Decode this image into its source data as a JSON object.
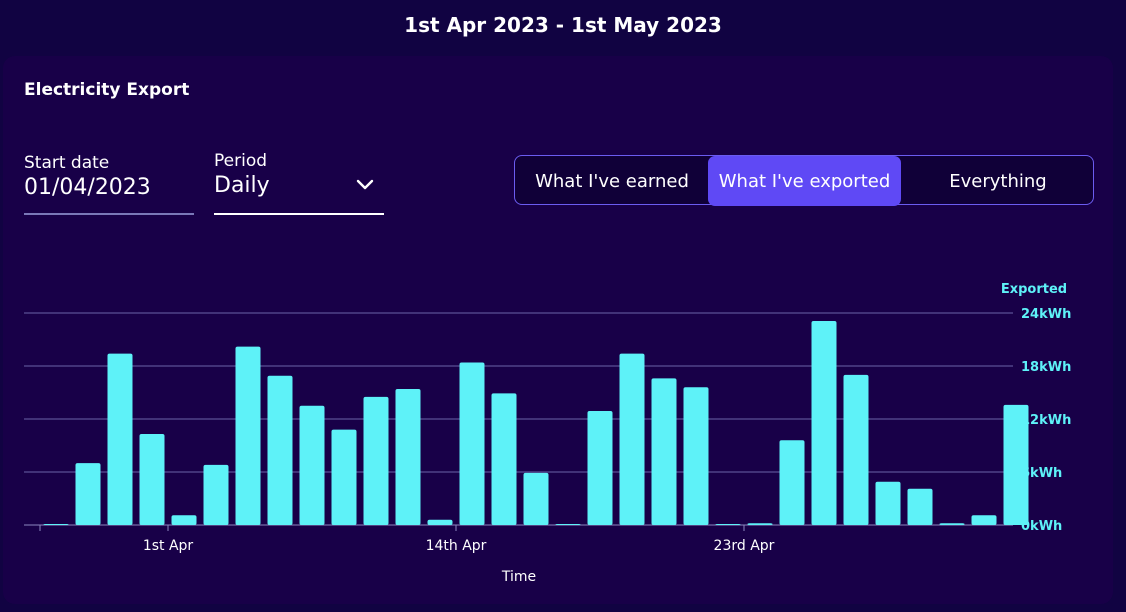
{
  "header": {
    "date_range": "1st Apr 2023 - 1st May 2023"
  },
  "card": {
    "title": "Electricity Export",
    "start_date": {
      "label": "Start date",
      "value": "01/04/2023"
    },
    "period": {
      "label": "Period",
      "value": "Daily"
    },
    "toggles": [
      {
        "label": "What I've earned",
        "active": false
      },
      {
        "label": "What I've exported",
        "active": true
      },
      {
        "label": "Everything",
        "active": false
      }
    ]
  },
  "colors": {
    "bar": "#5ef2f8",
    "accent": "#5f49f5",
    "axis_text": "#5ef2f8",
    "grid": "#6a64a8"
  },
  "chart_data": {
    "type": "bar",
    "xlabel": "Time",
    "ylabel": "Exported",
    "ylim": [
      0,
      24
    ],
    "y_ticks": [
      "0kWh",
      "6kWh",
      "12kWh",
      "18kWh",
      "24kWh"
    ],
    "y_tick_values": [
      0,
      6,
      12,
      18,
      24
    ],
    "x_tick_labels": [
      {
        "label": "1st Apr",
        "index": 3.5
      },
      {
        "label": "14th Apr",
        "index": 12.5
      },
      {
        "label": "23rd Apr",
        "index": 21.5
      }
    ],
    "grid": true,
    "legend": "none",
    "values": [
      0.1,
      7.0,
      19.4,
      10.3,
      1.1,
      6.8,
      20.2,
      16.9,
      13.5,
      10.8,
      14.5,
      15.4,
      0.6,
      18.4,
      14.9,
      5.9,
      0.1,
      12.9,
      19.4,
      16.6,
      15.6,
      0.1,
      0.2,
      9.6,
      23.1,
      17.0,
      4.9,
      4.1,
      0.2,
      1.1,
      13.6
    ]
  }
}
